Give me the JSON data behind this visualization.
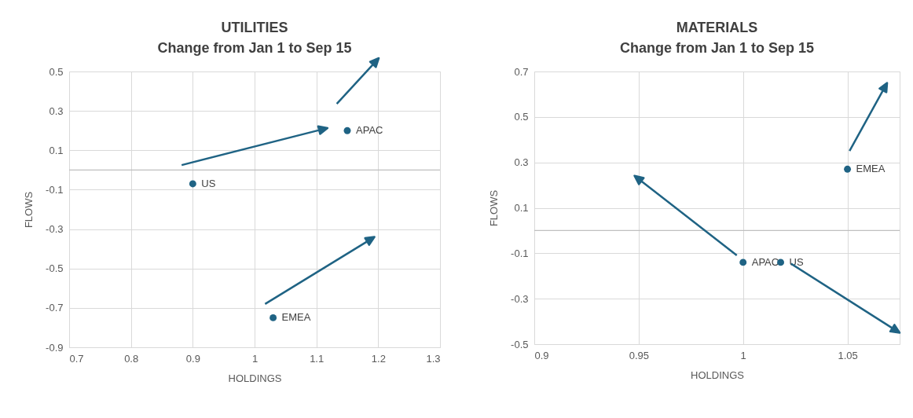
{
  "chart_data": [
    {
      "type": "scatter",
      "title": "UTILITIES",
      "subtitle": "Change from Jan 1 to Sep 15",
      "xlabel": "HOLDINGS",
      "ylabel": "FLOWS",
      "xlim": [
        0.7,
        1.3
      ],
      "xticks": [
        0.7,
        0.8,
        0.9,
        1,
        1.1,
        1.2,
        1.3
      ],
      "ylim": [
        -0.9,
        0.5
      ],
      "yticks": [
        -0.9,
        -0.7,
        -0.5,
        -0.3,
        -0.1,
        0.1,
        0.3,
        0.5
      ],
      "grid": true,
      "ref_lines": [
        {
          "axis": "y",
          "value": 0,
          "color": "#bfbfbf"
        }
      ],
      "series": [
        {
          "name": "US",
          "marker": "circle",
          "color": "#1f6384",
          "x": [
            0.9
          ],
          "values": [
            -0.07
          ]
        },
        {
          "name": "APAC",
          "marker": "circle",
          "color": "#1f6384",
          "x": [
            1.15
          ],
          "values": [
            0.2
          ]
        },
        {
          "name": "EMEA",
          "marker": "circle",
          "color": "#1f6384",
          "x": [
            1.03
          ],
          "values": [
            -0.75
          ]
        }
      ]
    },
    {
      "type": "scatter",
      "title": "MATERIALS",
      "subtitle": "Change from Jan 1 to Sep 15",
      "xlabel": "HOLDINGS",
      "ylabel": "FLOWS",
      "xlim": [
        0.9,
        1.075
      ],
      "xticks": [
        0.9,
        0.95,
        1,
        1.05
      ],
      "ylim": [
        -0.5,
        0.7
      ],
      "yticks": [
        -0.5,
        -0.3,
        -0.1,
        0.1,
        0.3,
        0.5,
        0.7
      ],
      "grid": true,
      "ref_lines": [
        {
          "axis": "y",
          "value": 0,
          "color": "#bfbfbf"
        }
      ],
      "series": [
        {
          "name": "APAC",
          "marker": "circle",
          "color": "#1f6384",
          "x": [
            1.0
          ],
          "values": [
            -0.14
          ]
        },
        {
          "name": "US",
          "marker": "circle",
          "color": "#1f6384",
          "x": [
            1.018
          ],
          "values": [
            -0.14
          ]
        },
        {
          "name": "EMEA",
          "marker": "circle",
          "color": "#1f6384",
          "x": [
            1.05
          ],
          "values": [
            0.27
          ]
        }
      ]
    }
  ]
}
